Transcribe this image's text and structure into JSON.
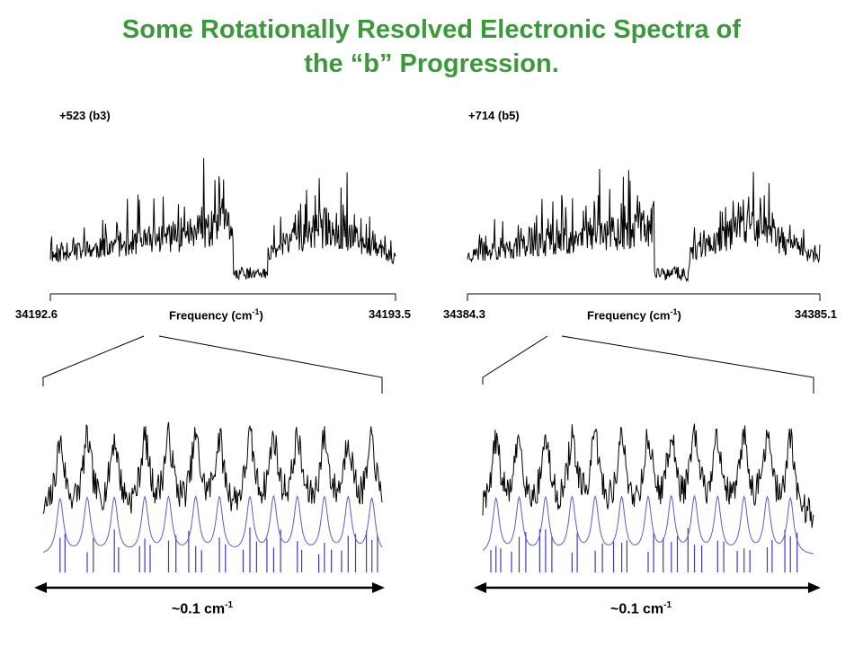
{
  "slide": {
    "title_line1": "Some Rotationally Resolved Electronic Spectra of",
    "title_line2": "the “b” Progression.",
    "title_color": "#3a9a3a"
  },
  "chart_data": [
    {
      "type": "line",
      "panel": "overview",
      "band_label": "+523 (b3)",
      "xlabel": "Frequency (cm",
      "xlabel_exp": "-1",
      "xlabel_close": ")",
      "x_tick_labels": [
        "34192.6",
        "34193.5"
      ],
      "xlim": [
        34192.6,
        34193.5
      ],
      "gap_fraction": 0.55,
      "trace_color": "#000000"
    },
    {
      "type": "line",
      "panel": "overview",
      "band_label": "+714 (b5)",
      "xlabel": "Frequency (cm",
      "xlabel_exp": "-1",
      "xlabel_close": ")",
      "x_tick_labels": [
        "34384.3",
        "34385.1"
      ],
      "xlim": [
        34384.3,
        34385.1
      ],
      "gap_fraction": 0.55,
      "trace_color": "#000000"
    },
    {
      "type": "line",
      "panel": "expanded",
      "span_label": "~0.1 cm",
      "span_exp": "-1",
      "series": [
        {
          "role": "experimental",
          "color": "#000000"
        },
        {
          "role": "simulated",
          "color": "#5b5bd6"
        }
      ],
      "stick_color": "#3a3acc"
    },
    {
      "type": "line",
      "panel": "expanded",
      "span_label": "~0.1 cm",
      "span_exp": "-1",
      "series": [
        {
          "role": "experimental",
          "color": "#000000"
        },
        {
          "role": "simulated",
          "color": "#5b5bd6"
        }
      ],
      "stick_color": "#3a3acc"
    }
  ]
}
